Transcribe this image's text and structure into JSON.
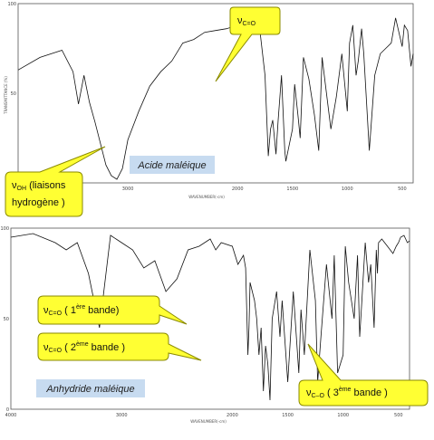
{
  "chart_data": [
    {
      "type": "line",
      "title": "",
      "xlabel": "WAVENUMBER(-cm)",
      "ylabel": "TRANSMITTANCE (%)",
      "x_reversed": true,
      "xlim": [
        4000,
        400
      ],
      "ylim": [
        0,
        100
      ],
      "x_ticks": [
        3000,
        2000,
        1500,
        1000,
        500
      ],
      "y_ticks": [
        100,
        50
      ],
      "grid": false,
      "label_chip": "Acide maléique",
      "series": [
        {
          "x": [
            4000,
            3800,
            3600,
            3500,
            3450,
            3400,
            3350,
            3300,
            3200,
            3150,
            3100,
            3050,
            3000,
            2900,
            2800,
            2700,
            2600,
            2500,
            2400,
            2300,
            2200,
            2100,
            2000,
            1900,
            1850,
            1800,
            1750,
            1720,
            1700,
            1680,
            1650,
            1630,
            1600,
            1570,
            1560,
            1500,
            1480,
            1450,
            1430,
            1400,
            1350,
            1300,
            1260,
            1230,
            1200,
            1150,
            1100,
            1050,
            1000,
            980,
            950,
            920,
            900,
            870,
            850,
            800,
            750,
            700,
            650,
            600,
            560,
            500,
            480,
            450,
            420,
            400
          ],
          "y": [
            63,
            70,
            74,
            62,
            44,
            60,
            45,
            34,
            10,
            4,
            2,
            8,
            24,
            40,
            54,
            62,
            68,
            78,
            80,
            84,
            85,
            86,
            88,
            90,
            89,
            87,
            60,
            15,
            30,
            35,
            16,
            35,
            60,
            18,
            12,
            30,
            55,
            38,
            25,
            70,
            58,
            38,
            18,
            70,
            55,
            30,
            48,
            72,
            40,
            78,
            88,
            60,
            68,
            86,
            72,
            18,
            60,
            72,
            75,
            78,
            92,
            76,
            88,
            85,
            65,
            72
          ]
        }
      ],
      "annotations": [
        {
          "symbol": "ν",
          "sub": "C=O",
          "text": ""
        },
        {
          "symbol": "ν",
          "sub": "OH",
          "text": "(liaisons hydrogène )"
        }
      ]
    },
    {
      "type": "line",
      "title": "",
      "xlabel": "WAVENUMBER(-cm)",
      "ylabel": "",
      "x_reversed": true,
      "xlim": [
        4000,
        400
      ],
      "ylim": [
        0,
        100
      ],
      "x_ticks": [
        4000,
        3000,
        2000,
        1500,
        1000,
        500
      ],
      "y_ticks": [
        100,
        50,
        0
      ],
      "grid": false,
      "label_chip": "Anhydride maléique",
      "series": [
        {
          "x": [
            4000,
            3800,
            3600,
            3500,
            3400,
            3300,
            3200,
            3100,
            3000,
            2900,
            2800,
            2700,
            2600,
            2500,
            2400,
            2300,
            2200,
            2150,
            2100,
            2000,
            1950,
            1900,
            1880,
            1860,
            1850,
            1840,
            1800,
            1780,
            1760,
            1740,
            1720,
            1700,
            1680,
            1660,
            1640,
            1600,
            1570,
            1550,
            1500,
            1450,
            1400,
            1380,
            1350,
            1300,
            1250,
            1230,
            1200,
            1150,
            1100,
            1080,
            1050,
            1000,
            980,
            950,
            900,
            870,
            850,
            830,
            800,
            770,
            750,
            720,
            700,
            690,
            680,
            650,
            600,
            550,
            520,
            500,
            480,
            450,
            420,
            400
          ],
          "y": [
            95,
            97,
            92,
            88,
            92,
            75,
            45,
            96,
            92,
            88,
            78,
            82,
            65,
            72,
            88,
            90,
            94,
            88,
            92,
            90,
            80,
            85,
            78,
            30,
            45,
            70,
            60,
            50,
            30,
            45,
            10,
            35,
            25,
            5,
            50,
            65,
            40,
            60,
            15,
            65,
            20,
            55,
            30,
            88,
            60,
            15,
            40,
            80,
            50,
            85,
            20,
            30,
            90,
            70,
            50,
            85,
            40,
            60,
            92,
            70,
            80,
            45,
            88,
            75,
            92,
            94,
            90,
            86,
            90,
            92,
            95,
            96,
            92,
            93
          ]
        }
      ],
      "annotations": [
        {
          "symbol": "ν",
          "sub": "C=O",
          "text": "( 1ère bande)"
        },
        {
          "symbol": "ν",
          "sub": "C=O",
          "text": "( 2ème  bande )"
        },
        {
          "symbol": "ν",
          "sub": "C–O",
          "text": "( 3ème  bande )"
        }
      ]
    }
  ],
  "callouts": {
    "top_co": {
      "symbol": "ν",
      "sub": "C=O"
    },
    "top_oh": {
      "symbol": "ν",
      "sub": "OH",
      "line1": "(liaisons",
      "line2": "hydrogène )"
    },
    "bot_first": {
      "symbol": "ν",
      "sub": "C=O",
      "pre": "( 1",
      "sup": "ère",
      "post": " bande)"
    },
    "bot_second": {
      "symbol": "ν",
      "sub": "C=O",
      "pre": "( 2",
      "sup": "ème",
      "post": "  bande )"
    },
    "bot_third": {
      "symbol": "ν",
      "sub": "C–O",
      "pre": "( 3",
      "sup": "ème",
      "post": "  bande )"
    }
  },
  "colors": {
    "callout_fill": "#ffff33",
    "callout_stroke": "#8a8a00",
    "chip_fill": "#c7dbf0",
    "trace": "#111111"
  }
}
